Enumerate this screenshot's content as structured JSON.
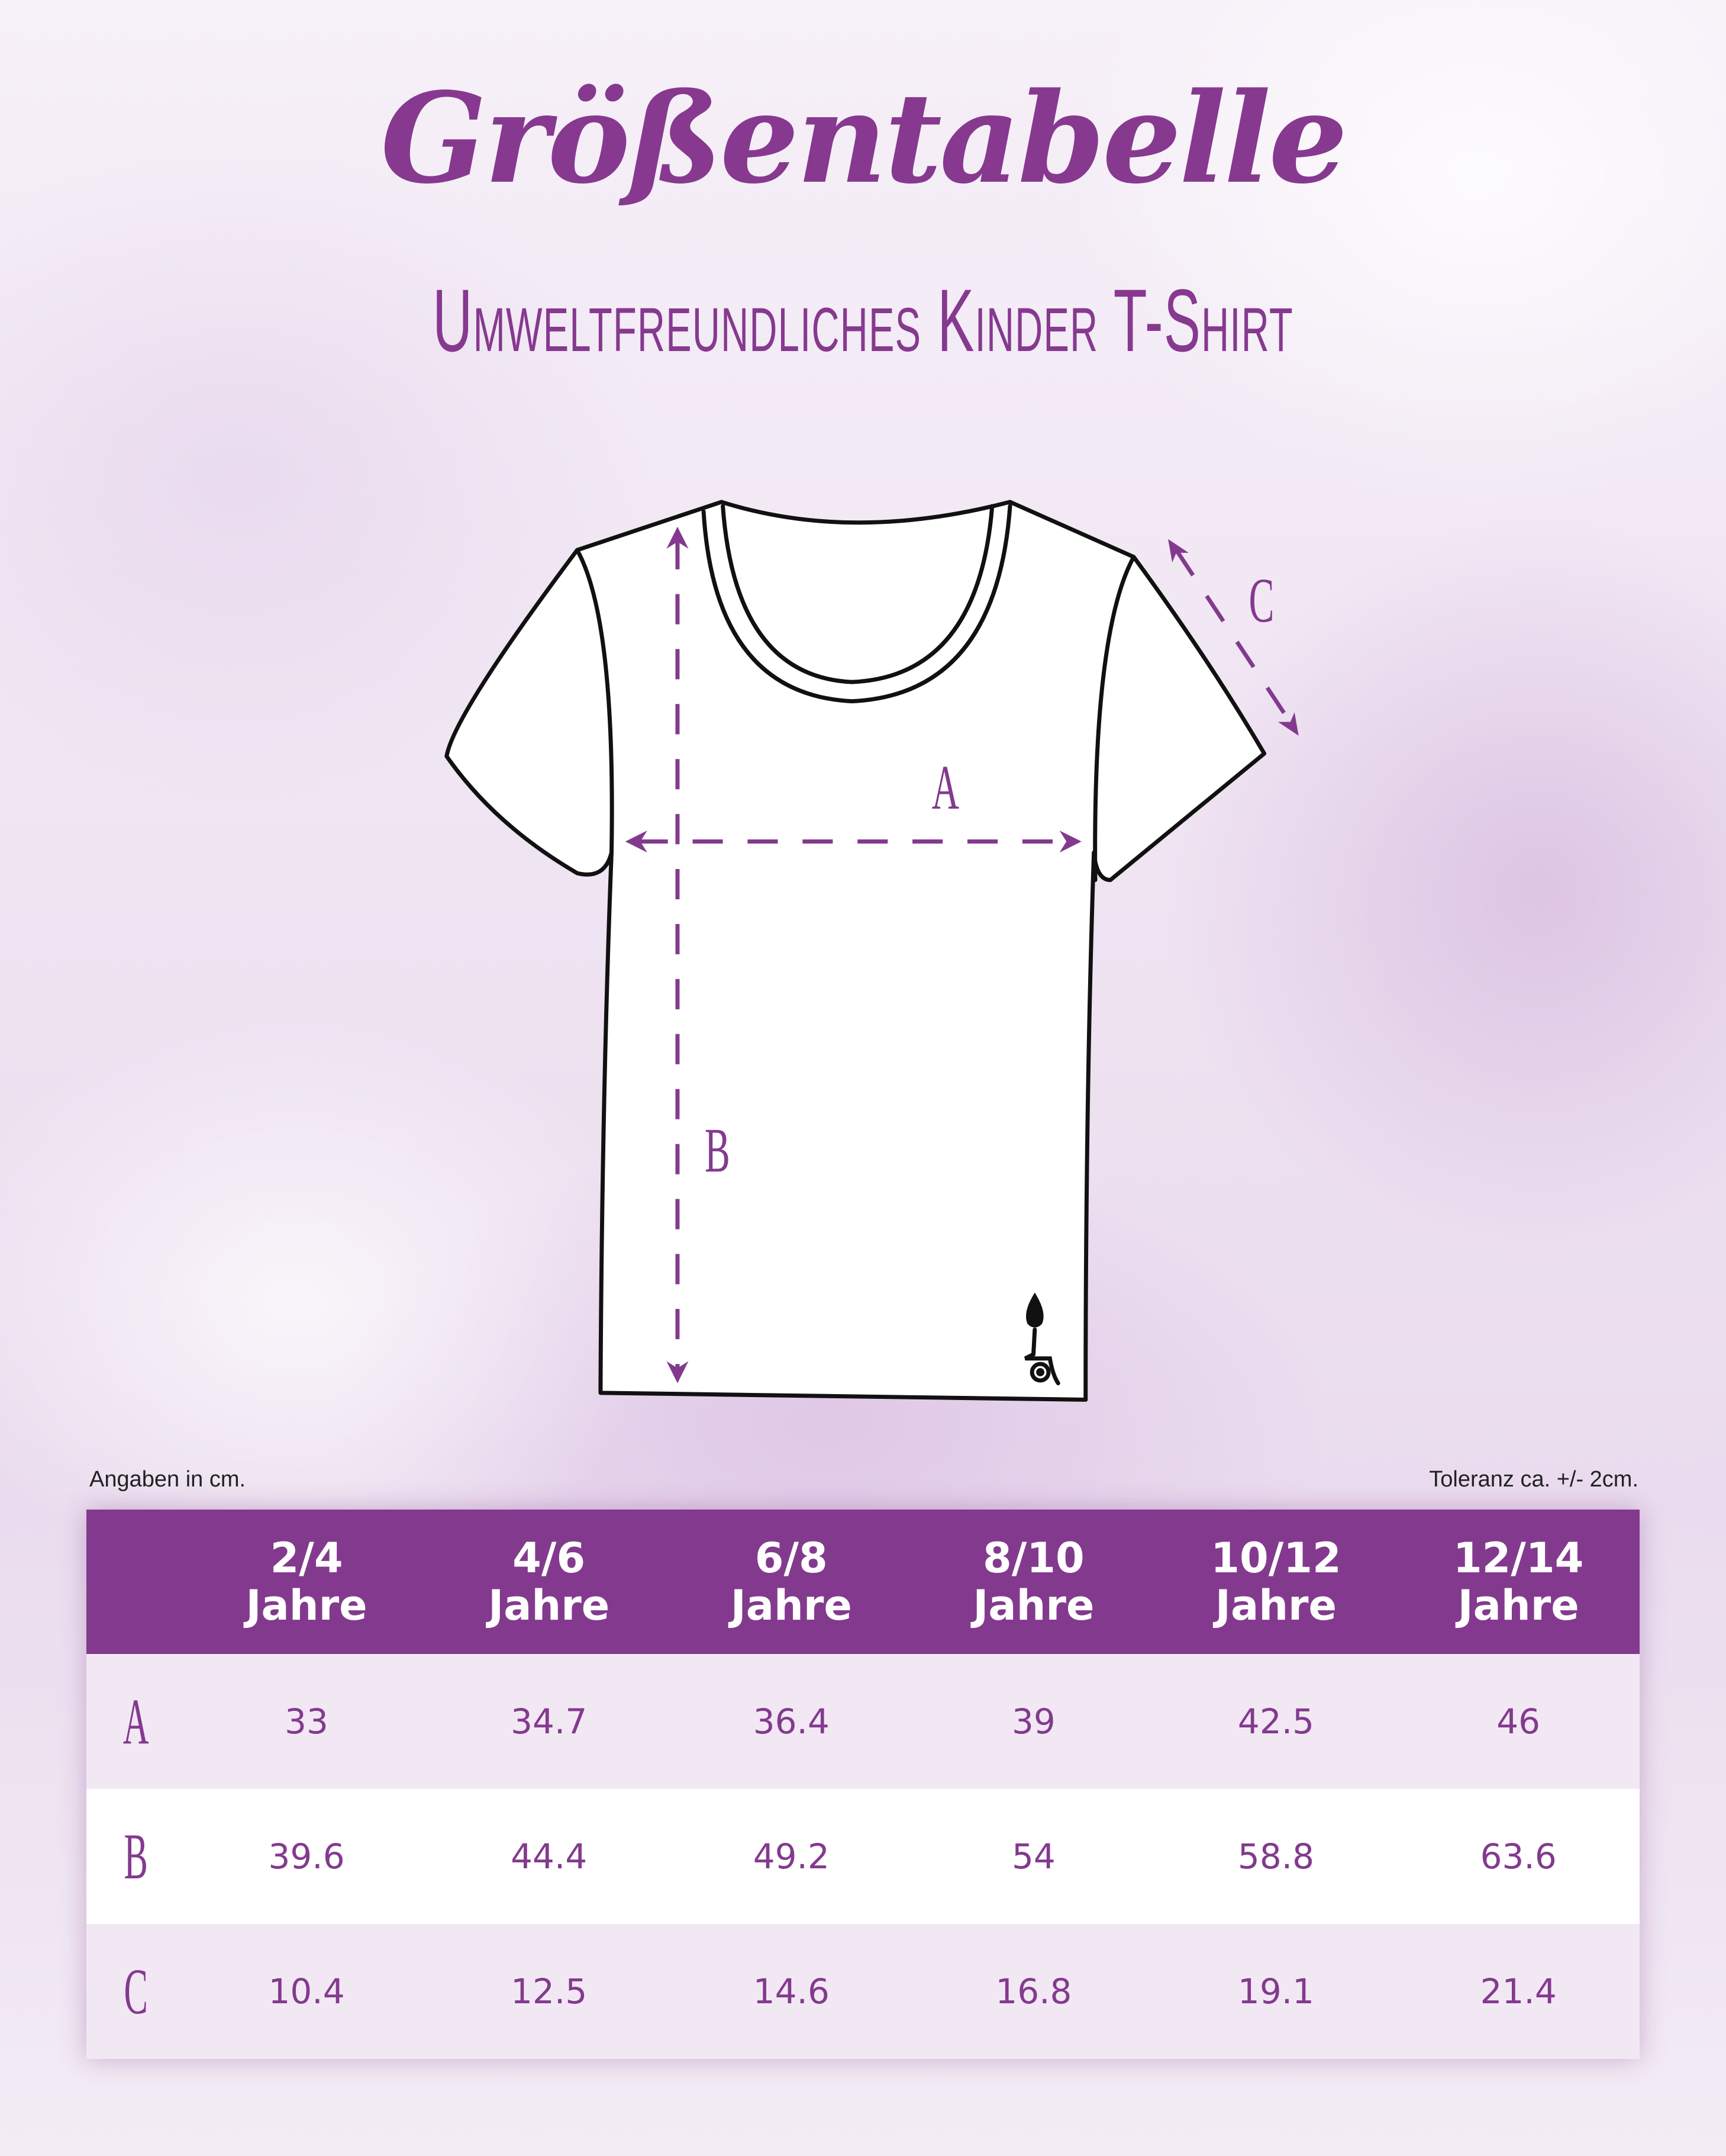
{
  "title": "Größentabelle",
  "subtitle": "Umweltfreundliches Kinder T-Shirt",
  "diagram": {
    "labels": {
      "a": "A",
      "b": "B",
      "c": "C"
    },
    "logo_icon": "candle-logo-icon"
  },
  "notes": {
    "left": "Angaben in cm.",
    "right": "Toleranz ca. +/- 2cm."
  },
  "colors": {
    "accent": "#833a8e",
    "row_alt": "#f2e8f4"
  },
  "table": {
    "headers": [
      {
        "size": "2/4",
        "unit": "Jahre"
      },
      {
        "size": "4/6",
        "unit": "Jahre"
      },
      {
        "size": "6/8",
        "unit": "Jahre"
      },
      {
        "size": "8/10",
        "unit": "Jahre"
      },
      {
        "size": "10/12",
        "unit": "Jahre"
      },
      {
        "size": "12/14",
        "unit": "Jahre"
      }
    ],
    "rows": [
      {
        "label": "A",
        "values": [
          "33",
          "34.7",
          "36.4",
          "39",
          "42.5",
          "46"
        ]
      },
      {
        "label": "B",
        "values": [
          "39.6",
          "44.4",
          "49.2",
          "54",
          "58.8",
          "63.6"
        ]
      },
      {
        "label": "C",
        "values": [
          "10.4",
          "12.5",
          "14.6",
          "16.8",
          "19.1",
          "21.4"
        ]
      }
    ]
  }
}
